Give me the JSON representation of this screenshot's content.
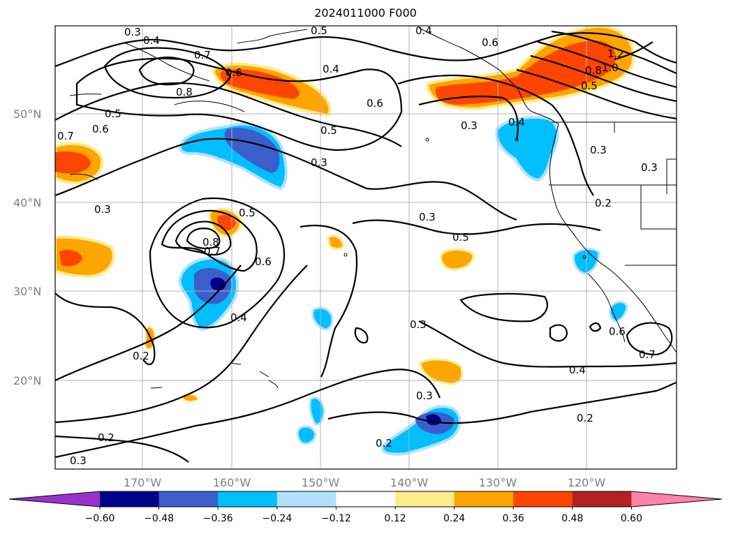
{
  "title": "2024011000 F000",
  "lat_labels": [
    "50°N",
    "40°N",
    "30°N",
    "20°N"
  ],
  "lon_labels": [
    "170°W",
    "160°W",
    "150°W",
    "140°W",
    "130°W",
    "120°W"
  ],
  "colorbar": {
    "tick_labels": [
      "−0.60",
      "−0.48",
      "−0.36",
      "−0.24",
      "−0.12",
      "0.12",
      "0.24",
      "0.36",
      "0.48",
      "0.60"
    ],
    "colors": [
      "#9932CC",
      "#00008B",
      "#3A5FCD",
      "#00BFFF",
      "#B0E2FF",
      "#FFFFFF",
      "#FFEC8B",
      "#FFA500",
      "#FF4500",
      "#B22222",
      "#FF82AB"
    ]
  },
  "contour_labels": [
    "0.3",
    "0.4",
    "0.5",
    "0.6",
    "0.7",
    "0.8",
    "0.2",
    "1.0",
    "1.2"
  ]
}
